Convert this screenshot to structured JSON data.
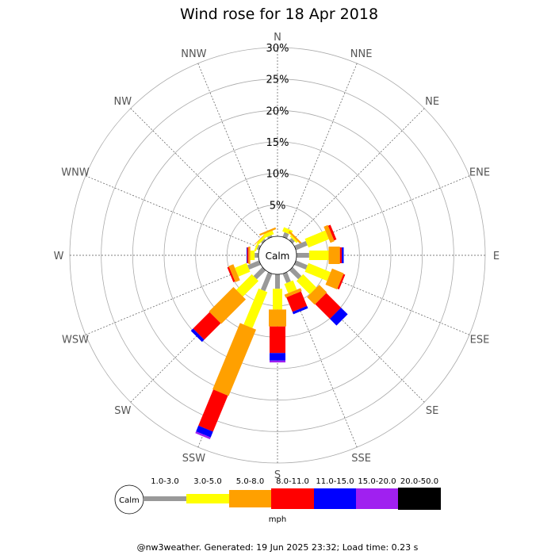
{
  "chart_data": {
    "type": "wind-rose",
    "title": "Wind rose for 18 Apr 2018",
    "calm_label": "Calm",
    "directions": [
      "N",
      "NNE",
      "NE",
      "ENE",
      "E",
      "ESE",
      "SE",
      "SSE",
      "S",
      "SSW",
      "SW",
      "WSW",
      "W",
      "WNW",
      "NW",
      "NNW"
    ],
    "rlim": [
      0,
      30
    ],
    "rings": [
      "5%",
      "10%",
      "15%",
      "20%",
      "25%",
      "30%"
    ],
    "ring_values": [
      5,
      10,
      15,
      20,
      25,
      30
    ],
    "grid": true,
    "units": "mph",
    "bins": [
      {
        "label": "",
        "color": "#999999"
      },
      {
        "label": "1.0-3.0",
        "color": "#ffff00"
      },
      {
        "label": "3.0-5.0",
        "color": "#ffa000"
      },
      {
        "label": "5.0-8.0",
        "color": "#ff0000"
      },
      {
        "label": "8.0-11.0",
        "color": "#0000ff"
      },
      {
        "label": "11.0-15.0",
        "color": "#a020f0"
      },
      {
        "label": "15.0-20.0",
        "color": "#000000"
      },
      {
        "label": "20.0-50.0",
        "color": ""
      }
    ],
    "series_by_direction": [
      {
        "dir": "N",
        "values": [
          0,
          0,
          0,
          0,
          0,
          0,
          0
        ]
      },
      {
        "dir": "NNE",
        "values": [
          0.8,
          0.7,
          0.0,
          0.0,
          0.0,
          0.0,
          0.0
        ]
      },
      {
        "dir": "NE",
        "values": [
          0.5,
          0.3,
          0.3,
          0.0,
          0.0,
          0.0,
          0.0
        ]
      },
      {
        "dir": "ENE",
        "values": [
          2.0,
          3.5,
          0.7,
          0.4,
          0.0,
          0.0,
          0.0
        ]
      },
      {
        "dir": "E",
        "values": [
          2.0,
          3.1,
          1.8,
          0.3,
          0.3,
          0.0,
          0.0
        ]
      },
      {
        "dir": "ESE",
        "values": [
          2.0,
          3.8,
          2.0,
          0.3,
          0.0,
          0.0,
          0.0
        ]
      },
      {
        "dir": "SE",
        "values": [
          2.0,
          3.0,
          1.7,
          3.3,
          1.5,
          0.0,
          0.0
        ]
      },
      {
        "dir": "SSE",
        "values": [
          1.6,
          1.6,
          0.5,
          2.5,
          0.4,
          0.0,
          0.0
        ]
      },
      {
        "dir": "S",
        "values": [
          2.3,
          3.3,
          2.7,
          4.2,
          1.2,
          0.3,
          0.0
        ]
      },
      {
        "dir": "SSW",
        "values": [
          3.0,
          6.2,
          11.4,
          6.2,
          1.0,
          0.3,
          0.0
        ]
      },
      {
        "dir": "SW",
        "values": [
          2.0,
          3.5,
          5.5,
          3.7,
          0.5,
          0.0,
          0.0
        ]
      },
      {
        "dir": "WSW",
        "values": [
          2.0,
          2.0,
          0.8,
          0.3,
          0.0,
          0.0,
          0.0
        ]
      },
      {
        "dir": "W",
        "values": [
          0.6,
          0.7,
          0.3,
          0.2,
          0.1,
          0.0,
          0.0
        ]
      },
      {
        "dir": "WNW",
        "values": [
          0.4,
          0.3,
          0.0,
          0.0,
          0.0,
          0.0,
          0.0
        ]
      },
      {
        "dir": "NW",
        "values": [
          0.3,
          0.4,
          0.1,
          0.0,
          0.0,
          0.0,
          0.0
        ]
      },
      {
        "dir": "NNW",
        "values": [
          0.3,
          0.6,
          0.3,
          0.0,
          0.0,
          0.0,
          0.0
        ]
      }
    ]
  },
  "footer": "@nw3weather. Generated: 19 Jun 2025 23:32; Load time: 0.23 s"
}
